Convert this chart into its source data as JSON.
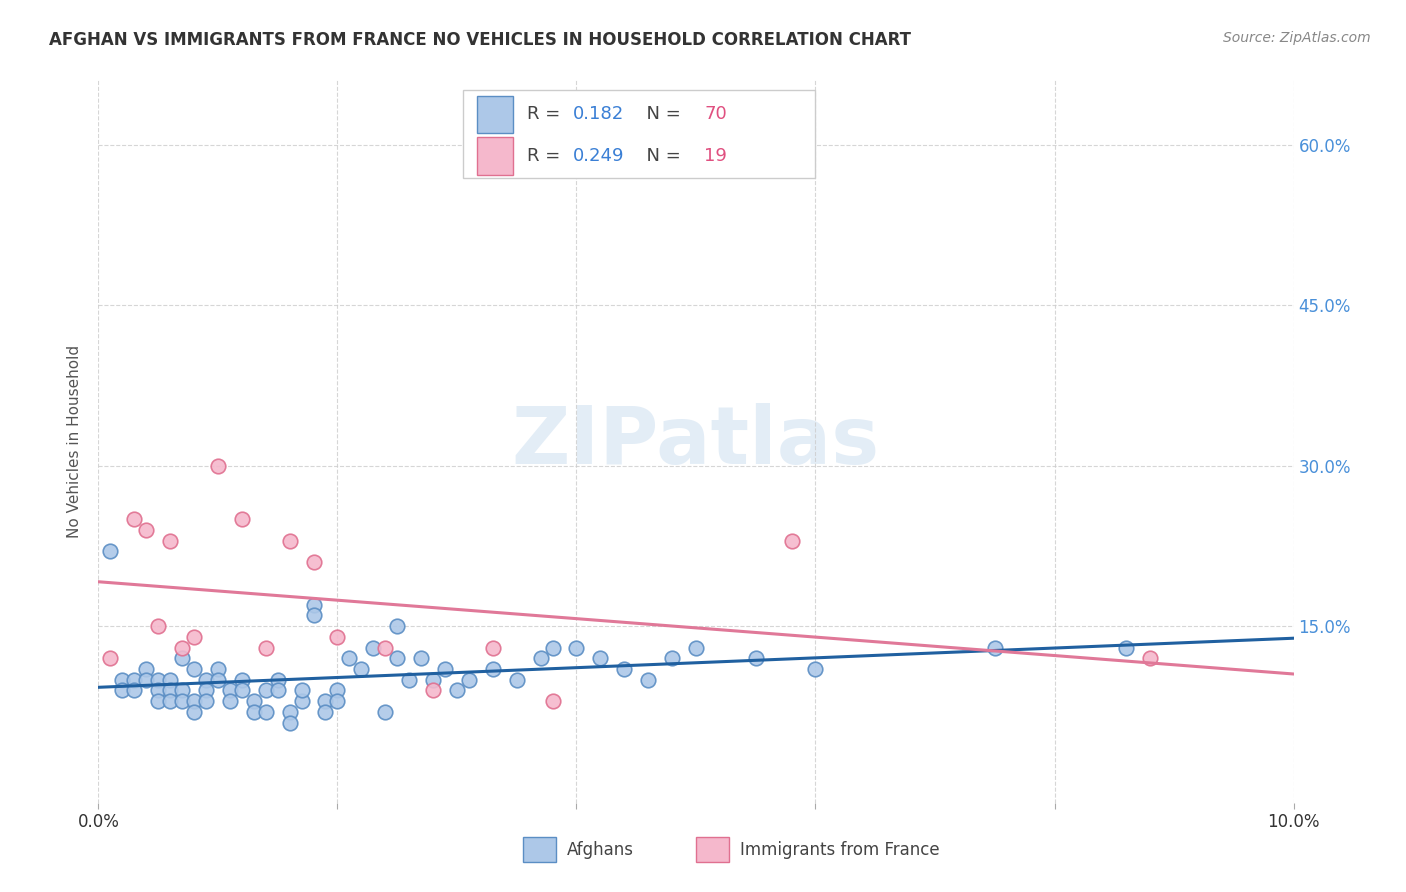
{
  "title": "AFGHAN VS IMMIGRANTS FROM FRANCE NO VEHICLES IN HOUSEHOLD CORRELATION CHART",
  "source": "Source: ZipAtlas.com",
  "ylabel": "No Vehicles in Household",
  "xlim": [
    0.0,
    0.1
  ],
  "ylim": [
    -0.015,
    0.66
  ],
  "ytick_values": [
    0.15,
    0.3,
    0.45,
    0.6
  ],
  "ytick_labels": [
    "15.0%",
    "30.0%",
    "45.0%",
    "60.0%"
  ],
  "legend_r_afghan": "0.182",
  "legend_n_afghan": "70",
  "legend_r_france": "0.249",
  "legend_n_france": "19",
  "color_afghan_fill": "#adc8e8",
  "color_afghan_edge": "#5b8ec4",
  "color_france_fill": "#f5b8cc",
  "color_france_edge": "#e07090",
  "color_line_afghan": "#2060a0",
  "color_line_france": "#e07898",
  "afghan_x": [
    0.001,
    0.002,
    0.002,
    0.003,
    0.003,
    0.004,
    0.004,
    0.005,
    0.005,
    0.005,
    0.006,
    0.006,
    0.006,
    0.007,
    0.007,
    0.007,
    0.008,
    0.008,
    0.008,
    0.009,
    0.009,
    0.009,
    0.01,
    0.01,
    0.011,
    0.011,
    0.012,
    0.012,
    0.013,
    0.013,
    0.014,
    0.014,
    0.015,
    0.015,
    0.016,
    0.016,
    0.017,
    0.017,
    0.018,
    0.018,
    0.019,
    0.019,
    0.02,
    0.02,
    0.021,
    0.022,
    0.023,
    0.024,
    0.025,
    0.025,
    0.026,
    0.027,
    0.028,
    0.029,
    0.03,
    0.031,
    0.033,
    0.035,
    0.037,
    0.038,
    0.04,
    0.042,
    0.044,
    0.046,
    0.048,
    0.05,
    0.055,
    0.06,
    0.075,
    0.086
  ],
  "afghan_y": [
    0.22,
    0.1,
    0.09,
    0.1,
    0.09,
    0.11,
    0.1,
    0.1,
    0.09,
    0.08,
    0.1,
    0.09,
    0.08,
    0.12,
    0.09,
    0.08,
    0.11,
    0.08,
    0.07,
    0.1,
    0.09,
    0.08,
    0.11,
    0.1,
    0.09,
    0.08,
    0.1,
    0.09,
    0.08,
    0.07,
    0.09,
    0.07,
    0.1,
    0.09,
    0.07,
    0.06,
    0.08,
    0.09,
    0.17,
    0.16,
    0.08,
    0.07,
    0.09,
    0.08,
    0.12,
    0.11,
    0.13,
    0.07,
    0.15,
    0.12,
    0.1,
    0.12,
    0.1,
    0.11,
    0.09,
    0.1,
    0.11,
    0.1,
    0.12,
    0.13,
    0.13,
    0.12,
    0.11,
    0.1,
    0.12,
    0.13,
    0.12,
    0.11,
    0.13,
    0.13
  ],
  "france_x": [
    0.001,
    0.003,
    0.004,
    0.005,
    0.006,
    0.007,
    0.008,
    0.01,
    0.012,
    0.014,
    0.016,
    0.018,
    0.02,
    0.024,
    0.028,
    0.033,
    0.038,
    0.058,
    0.088
  ],
  "france_y": [
    0.12,
    0.25,
    0.24,
    0.15,
    0.23,
    0.13,
    0.14,
    0.3,
    0.25,
    0.13,
    0.23,
    0.21,
    0.14,
    0.13,
    0.09,
    0.13,
    0.08,
    0.23,
    0.12
  ]
}
